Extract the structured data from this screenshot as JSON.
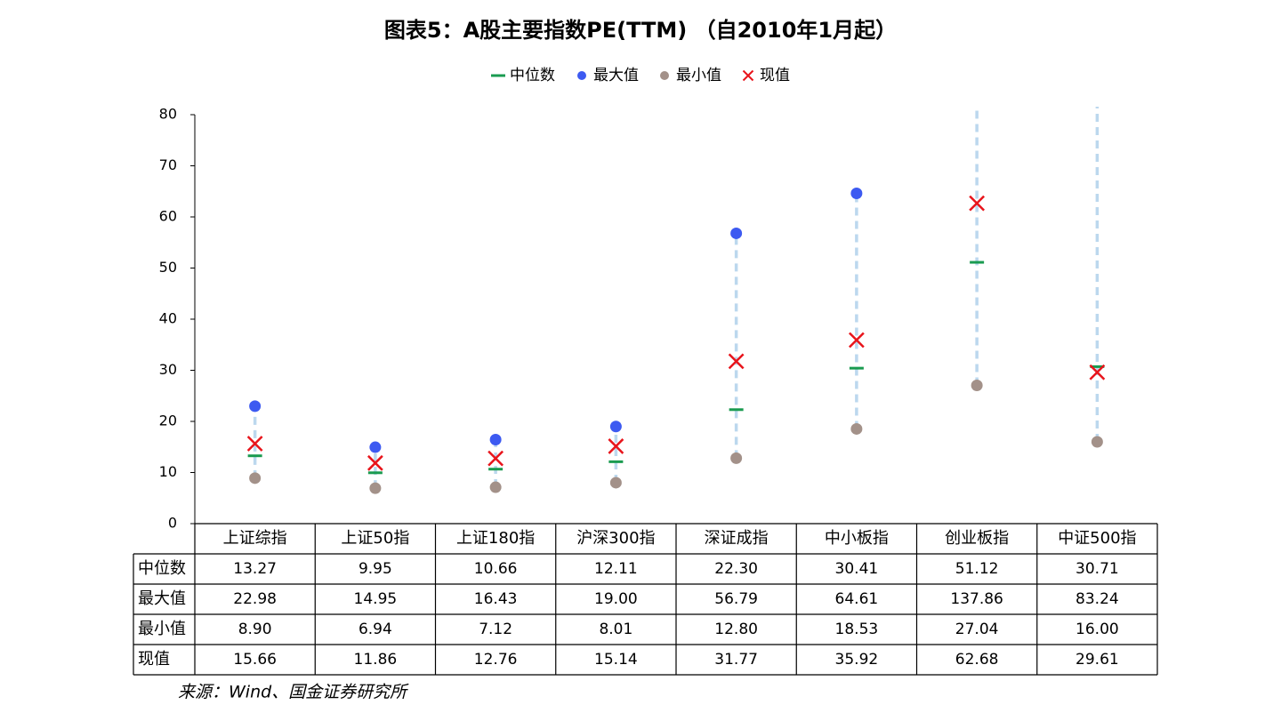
{
  "chart_data": {
    "type": "range_dot",
    "title": "图表5：A股主要指数PE(TTM) （自2010年1月起）",
    "source": "来源：Wind、国金证券研究所",
    "categories": [
      "上证综指",
      "上证50指",
      "上证180指",
      "沪深300指",
      "深证成指",
      "中小板指",
      "创业板指",
      "中证500指"
    ],
    "series": [
      {
        "name": "中位数",
        "color": "#1a9b50",
        "marker": "dash",
        "values": [
          13.27,
          9.95,
          10.66,
          12.11,
          22.3,
          30.41,
          51.12,
          30.71
        ],
        "value_labels": [
          "13.27",
          "9.95",
          "10.66",
          "12.11",
          "22.30",
          "30.41",
          "51.12",
          "30.71"
        ]
      },
      {
        "name": "最大值",
        "color": "#3d5af1",
        "marker": "dot",
        "values": [
          22.98,
          14.95,
          16.43,
          19,
          56.79,
          64.61,
          137.86,
          83.24
        ],
        "value_labels": [
          "22.98",
          "14.95",
          "16.43",
          "19.00",
          "56.79",
          "64.61",
          "137.86",
          "83.24"
        ]
      },
      {
        "name": "最小值",
        "color": "#a39189",
        "marker": "dot",
        "values": [
          8.9,
          6.94,
          7.12,
          8.01,
          12.8,
          18.53,
          27.04,
          16
        ],
        "value_labels": [
          "8.90",
          "6.94",
          "7.12",
          "8.01",
          "12.80",
          "18.53",
          "27.04",
          "16.00"
        ]
      },
      {
        "name": "现值",
        "color": "#e8141b",
        "marker": "cross",
        "values": [
          15.66,
          11.86,
          12.76,
          15.14,
          31.77,
          35.92,
          62.68,
          29.61
        ],
        "value_labels": [
          "15.66",
          "11.86",
          "12.76",
          "15.14",
          "31.77",
          "35.92",
          "62.68",
          "29.61"
        ]
      }
    ],
    "range_color": "#bcd8ee",
    "ylim": [
      0,
      80
    ],
    "yticks": [
      0,
      10,
      20,
      30,
      40,
      50,
      60,
      70,
      80
    ]
  }
}
